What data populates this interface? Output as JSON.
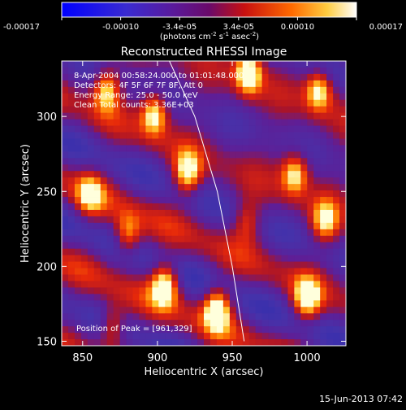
{
  "colorbar": {
    "ticks": [
      "-0.00017",
      "-0.00010",
      "-3.4e-05",
      "3.4e-05",
      "0.00010",
      "0.00017"
    ],
    "units_line1": "(photons cm",
    "units_sup1": "-2",
    "units_mid": " s",
    "units_sup2": "-1",
    "units_mid2": " asec",
    "units_sup3": "-2",
    "units_end": ")"
  },
  "chart_data": {
    "type": "heatmap",
    "title": "Reconstructed RHESSI Image",
    "xlabel": "Heliocentric X (arcsec)",
    "ylabel": "Heliocentric Y (arcsec)",
    "xlim": [
      836,
      1026
    ],
    "ylim": [
      147,
      337
    ],
    "xticks": [
      850,
      900,
      950,
      1000
    ],
    "yticks": [
      150,
      200,
      250,
      300
    ],
    "colorbar_range": [
      -0.00017,
      0.00017
    ],
    "overlay": {
      "time_line": "8-Apr-2004 00:58:24.000 to 01:01:48.000",
      "detectors_line": "Detectors: 4F 5F 6F 7F 8F, Att 0",
      "energy_line": "Energy Range: 25.0 - 50.0 keV",
      "clean_line": "Clean    Total counts: 3.36E+03"
    },
    "peak": {
      "label": "Position of Peak = [961,329]",
      "x": 961,
      "y": 329
    },
    "limb": [
      [
        908,
        337
      ],
      [
        925,
        300
      ],
      [
        940,
        250
      ],
      [
        950,
        200
      ],
      [
        958,
        150
      ]
    ],
    "hot_spots": [
      {
        "x": 866,
        "y": 318,
        "v": 0.8
      },
      {
        "x": 898,
        "y": 302,
        "v": 0.9
      },
      {
        "x": 920,
        "y": 262,
        "v": 0.85
      },
      {
        "x": 905,
        "y": 188,
        "v": 0.95
      },
      {
        "x": 940,
        "y": 172,
        "v": 1.0
      },
      {
        "x": 961,
        "y": 329,
        "v": 1.0
      },
      {
        "x": 1008,
        "y": 318,
        "v": 0.85
      },
      {
        "x": 992,
        "y": 262,
        "v": 0.8
      },
      {
        "x": 1012,
        "y": 230,
        "v": 0.7
      },
      {
        "x": 1000,
        "y": 178,
        "v": 0.85
      },
      {
        "x": 855,
        "y": 248,
        "v": 0.6
      },
      {
        "x": 880,
        "y": 220,
        "v": 0.7
      },
      {
        "x": 870,
        "y": 160,
        "v": 0.6
      },
      {
        "x": 960,
        "y": 230,
        "v": 0.5
      }
    ]
  },
  "footer": {
    "date": "15-Jun-2013 07:42"
  }
}
